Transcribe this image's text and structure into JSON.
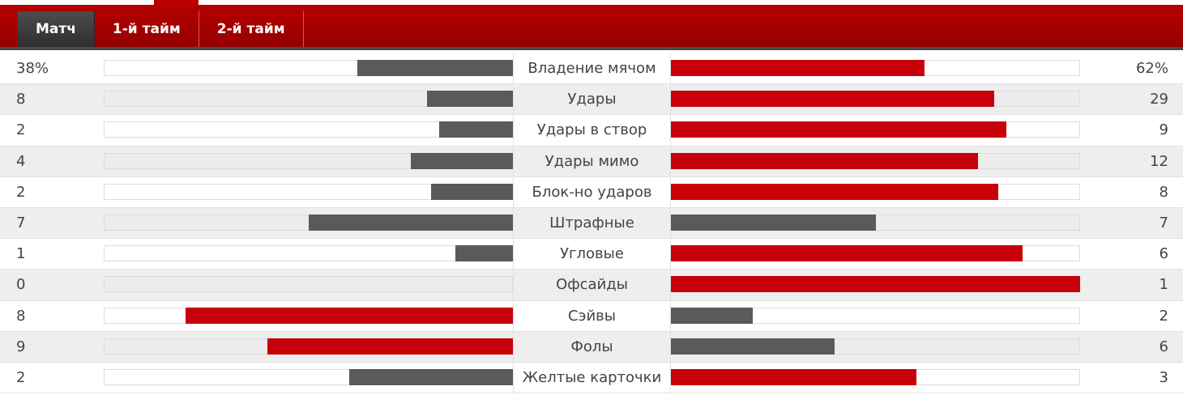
{
  "tabs": [
    {
      "label": "Матч",
      "active": true
    },
    {
      "label": "1-й тайм",
      "active": false
    },
    {
      "label": "2-й тайм",
      "active": false
    }
  ],
  "colors": {
    "red": "#c8000a",
    "gray": "#5a5a5a"
  },
  "stats": [
    {
      "name": "Владение мячом",
      "left": "38%",
      "right": "62%",
      "left_frac": 0.38,
      "right_frac": 0.62,
      "left_color": "gray",
      "right_color": "red"
    },
    {
      "name": "Удары",
      "left": "8",
      "right": "29",
      "left_frac": 0.21,
      "right_frac": 0.79,
      "left_color": "gray",
      "right_color": "red"
    },
    {
      "name": "Удары в створ",
      "left": "2",
      "right": "9",
      "left_frac": 0.18,
      "right_frac": 0.82,
      "left_color": "gray",
      "right_color": "red"
    },
    {
      "name": "Удары мимо",
      "left": "4",
      "right": "12",
      "left_frac": 0.25,
      "right_frac": 0.75,
      "left_color": "gray",
      "right_color": "red"
    },
    {
      "name": "Блок-но ударов",
      "left": "2",
      "right": "8",
      "left_frac": 0.2,
      "right_frac": 0.8,
      "left_color": "gray",
      "right_color": "red"
    },
    {
      "name": "Штрафные",
      "left": "7",
      "right": "7",
      "left_frac": 0.5,
      "right_frac": 0.5,
      "left_color": "gray",
      "right_color": "gray"
    },
    {
      "name": "Угловые",
      "left": "1",
      "right": "6",
      "left_frac": 0.14,
      "right_frac": 0.86,
      "left_color": "gray",
      "right_color": "red"
    },
    {
      "name": "Офсайды",
      "left": "0",
      "right": "1",
      "left_frac": 0.0,
      "right_frac": 1.0,
      "left_color": "gray",
      "right_color": "red"
    },
    {
      "name": "Сэйвы",
      "left": "8",
      "right": "2",
      "left_frac": 0.8,
      "right_frac": 0.2,
      "left_color": "red",
      "right_color": "gray"
    },
    {
      "name": "Фолы",
      "left": "9",
      "right": "6",
      "left_frac": 0.6,
      "right_frac": 0.4,
      "left_color": "red",
      "right_color": "gray"
    },
    {
      "name": "Желтые карточки",
      "left": "2",
      "right": "3",
      "left_frac": 0.4,
      "right_frac": 0.6,
      "left_color": "gray",
      "right_color": "red"
    }
  ]
}
